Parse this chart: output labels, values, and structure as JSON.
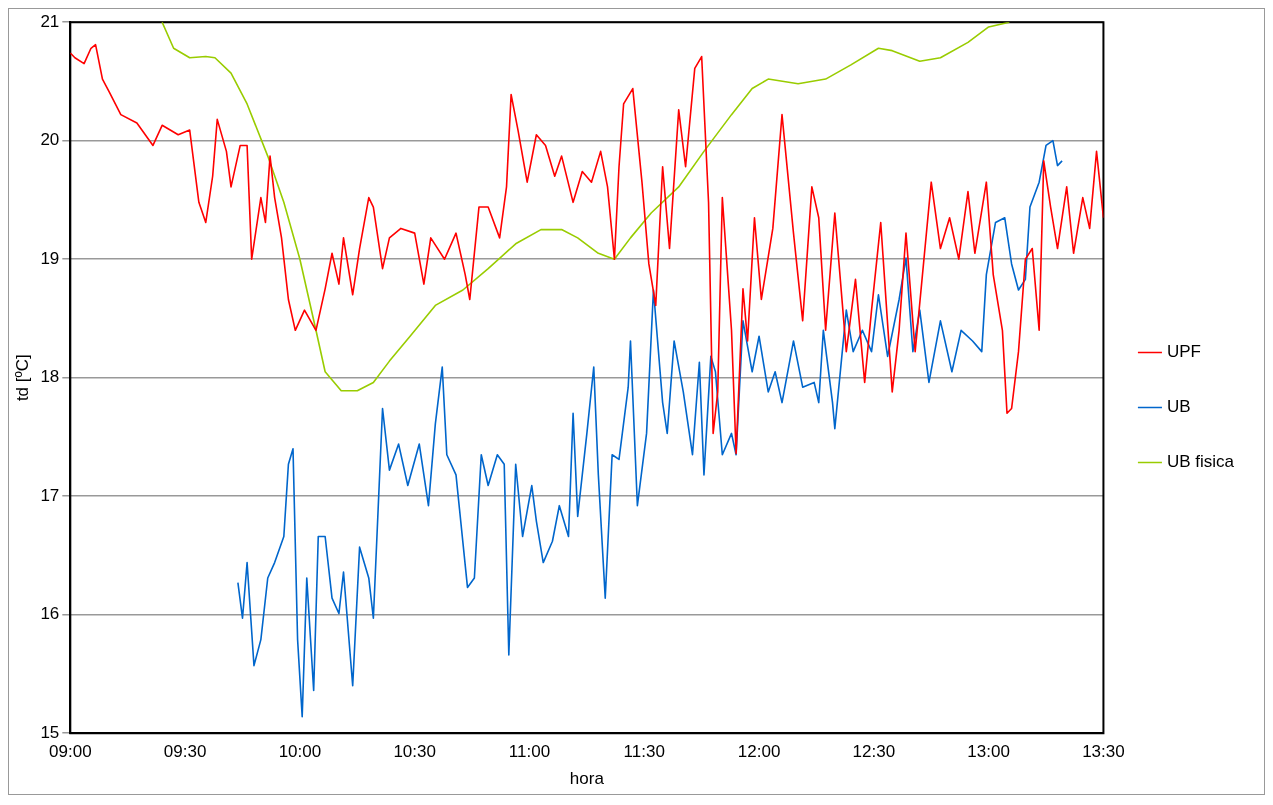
{
  "chart_data": {
    "type": "line",
    "xlabel": "hora",
    "ylabel": "td [ºC]",
    "xlim": [
      9,
      13.5
    ],
    "ylim": [
      15,
      21
    ],
    "xticks": [
      {
        "value": 9,
        "label": "09:00"
      },
      {
        "value": 9.5,
        "label": "09:30"
      },
      {
        "value": 10,
        "label": "10:00"
      },
      {
        "value": 10.5,
        "label": "10:30"
      },
      {
        "value": 11,
        "label": "11:00"
      },
      {
        "value": 11.5,
        "label": "11:30"
      },
      {
        "value": 12,
        "label": "12:00"
      },
      {
        "value": 12.5,
        "label": "12:30"
      },
      {
        "value": 13,
        "label": "13:00"
      },
      {
        "value": 13.5,
        "label": "13:30"
      }
    ],
    "yticks": [
      15,
      16,
      17,
      18,
      19,
      20,
      21
    ],
    "grid": "y",
    "legend": "right",
    "marker": "none",
    "line_style": "solid",
    "series": [
      {
        "name": "UPF",
        "color": "#ff0000",
        "x": [
          9.0,
          9.02,
          9.06,
          9.09,
          9.11,
          9.14,
          9.17,
          9.22,
          9.29,
          9.36,
          9.4,
          9.47,
          9.52,
          9.56,
          9.59,
          9.62,
          9.64,
          9.68,
          9.7,
          9.74,
          9.77,
          9.79,
          9.83,
          9.85,
          9.87,
          9.89,
          9.92,
          9.95,
          9.98,
          10.02,
          10.07,
          10.11,
          10.14,
          10.17,
          10.19,
          10.23,
          10.26,
          10.3,
          10.32,
          10.36,
          10.39,
          10.44,
          10.5,
          10.54,
          10.57,
          10.63,
          10.68,
          10.72,
          10.74,
          10.78,
          10.82,
          10.87,
          10.9,
          10.92,
          10.95,
          10.99,
          11.03,
          11.07,
          11.11,
          11.14,
          11.19,
          11.23,
          11.27,
          11.31,
          11.34,
          11.37,
          11.39,
          11.41,
          11.45,
          11.49,
          11.52,
          11.55,
          11.58,
          11.61,
          11.65,
          11.68,
          11.72,
          11.75,
          11.78,
          11.8,
          11.82,
          11.84,
          11.88,
          11.9,
          11.93,
          11.95,
          11.98,
          12.01,
          12.06,
          12.1,
          12.15,
          12.19,
          12.23,
          12.26,
          12.29,
          12.33,
          12.38,
          12.42,
          12.46,
          12.49,
          12.53,
          12.58,
          12.61,
          12.64,
          12.68,
          12.75,
          12.79,
          12.83,
          12.87,
          12.91,
          12.94,
          12.99,
          13.02,
          13.06,
          13.08,
          13.1,
          13.13,
          13.16,
          13.19,
          13.22,
          13.24,
          13.27,
          13.3,
          13.34,
          13.37,
          13.41,
          13.44,
          13.47,
          13.5
        ],
        "values": [
          20.74,
          20.7,
          20.65,
          20.78,
          20.81,
          20.52,
          20.41,
          20.22,
          20.15,
          19.96,
          20.13,
          20.05,
          20.09,
          19.48,
          19.31,
          19.7,
          20.18,
          19.91,
          19.61,
          19.96,
          19.96,
          19.0,
          19.52,
          19.31,
          19.87,
          19.52,
          19.18,
          18.66,
          18.4,
          18.57,
          18.4,
          18.75,
          19.05,
          18.79,
          19.18,
          18.7,
          19.09,
          19.52,
          19.44,
          18.92,
          19.18,
          19.26,
          19.22,
          18.79,
          19.18,
          19.0,
          19.22,
          18.87,
          18.66,
          19.44,
          19.44,
          19.18,
          19.61,
          20.39,
          20.09,
          19.65,
          20.05,
          19.96,
          19.7,
          19.87,
          19.48,
          19.74,
          19.65,
          19.91,
          19.61,
          19.0,
          19.78,
          20.31,
          20.44,
          19.65,
          18.96,
          18.61,
          19.78,
          19.09,
          20.26,
          19.78,
          20.61,
          20.71,
          19.48,
          17.53,
          17.88,
          19.52,
          18.4,
          17.36,
          18.75,
          18.31,
          19.35,
          18.66,
          19.26,
          20.22,
          19.22,
          18.48,
          19.61,
          19.35,
          18.4,
          19.39,
          18.22,
          18.83,
          17.96,
          18.57,
          19.31,
          17.88,
          18.4,
          19.22,
          18.22,
          19.65,
          19.09,
          19.35,
          19.0,
          19.57,
          19.05,
          19.65,
          18.87,
          18.4,
          17.7,
          17.74,
          18.22,
          19.0,
          19.09,
          18.4,
          19.83,
          19.44,
          19.09,
          19.61,
          19.05,
          19.52,
          19.26,
          19.91,
          19.35
        ]
      },
      {
        "name": "UB",
        "color": "#0066cc",
        "x": [
          9.73,
          9.75,
          9.77,
          9.8,
          9.83,
          9.86,
          9.89,
          9.93,
          9.95,
          9.97,
          9.99,
          10.01,
          10.03,
          10.06,
          10.08,
          10.11,
          10.14,
          10.17,
          10.19,
          10.23,
          10.26,
          10.3,
          10.32,
          10.36,
          10.39,
          10.43,
          10.47,
          10.52,
          10.56,
          10.59,
          10.62,
          10.64,
          10.68,
          10.73,
          10.76,
          10.79,
          10.82,
          10.86,
          10.89,
          10.91,
          10.94,
          10.97,
          11.01,
          11.03,
          11.06,
          11.1,
          11.13,
          11.17,
          11.19,
          11.21,
          11.25,
          11.28,
          11.3,
          11.33,
          11.36,
          11.39,
          11.43,
          11.44,
          11.47,
          11.51,
          11.54,
          11.58,
          11.6,
          11.63,
          11.67,
          11.71,
          11.74,
          11.76,
          11.79,
          11.81,
          11.84,
          11.88,
          11.9,
          11.93,
          11.97,
          12.0,
          12.04,
          12.07,
          12.1,
          12.15,
          12.19,
          12.24,
          12.26,
          12.28,
          12.32,
          12.33,
          12.38,
          12.41,
          12.45,
          12.49,
          12.52,
          12.56,
          12.61,
          12.64,
          12.67,
          12.7,
          12.74,
          12.79,
          12.84,
          12.88,
          12.93,
          12.97,
          12.99,
          13.03,
          13.07,
          13.1,
          13.13,
          13.16,
          13.18,
          13.22,
          13.25,
          13.28,
          13.3,
          13.32
        ],
        "values": [
          16.27,
          15.97,
          16.44,
          15.57,
          15.79,
          16.31,
          16.44,
          16.66,
          17.27,
          17.4,
          15.79,
          15.14,
          16.31,
          15.36,
          16.66,
          16.66,
          16.14,
          16.01,
          16.36,
          15.4,
          16.57,
          16.31,
          15.97,
          17.74,
          17.22,
          17.44,
          17.09,
          17.44,
          16.92,
          17.61,
          18.09,
          17.35,
          17.18,
          16.23,
          16.31,
          17.35,
          17.09,
          17.35,
          17.27,
          15.66,
          17.27,
          16.66,
          17.09,
          16.79,
          16.44,
          16.62,
          16.92,
          16.66,
          17.7,
          16.83,
          17.53,
          18.09,
          17.18,
          16.14,
          17.35,
          17.31,
          17.92,
          18.31,
          16.92,
          17.53,
          18.74,
          17.79,
          17.53,
          18.31,
          17.88,
          17.35,
          18.13,
          17.18,
          18.18,
          18.05,
          17.35,
          17.53,
          17.35,
          18.48,
          18.05,
          18.35,
          17.88,
          18.05,
          17.79,
          18.31,
          17.92,
          17.96,
          17.79,
          18.4,
          17.79,
          17.57,
          18.57,
          18.22,
          18.4,
          18.22,
          18.7,
          18.18,
          18.66,
          19.01,
          18.22,
          18.57,
          17.96,
          18.48,
          18.05,
          18.4,
          18.31,
          18.22,
          18.87,
          19.31,
          19.35,
          18.96,
          18.74,
          18.83,
          19.44,
          19.65,
          19.96,
          20.0,
          19.79,
          19.83
        ]
      },
      {
        "name": "UB fisica",
        "color": "#99cc00",
        "x": [
          9.4,
          9.45,
          9.52,
          9.59,
          9.63,
          9.7,
          9.77,
          9.86,
          9.93,
          10.0,
          10.07,
          10.11,
          10.18,
          10.25,
          10.32,
          10.39,
          10.48,
          10.59,
          10.71,
          10.82,
          10.94,
          11.05,
          11.14,
          11.21,
          11.3,
          11.37,
          11.44,
          11.53,
          11.65,
          11.76,
          11.88,
          11.97,
          12.04,
          12.17,
          12.29,
          12.4,
          12.52,
          12.58,
          12.7,
          12.79,
          12.91,
          13.0,
          13.09
        ],
        "values": [
          21.0,
          20.78,
          20.7,
          20.71,
          20.7,
          20.57,
          20.31,
          19.87,
          19.48,
          19.0,
          18.4,
          18.05,
          17.89,
          17.89,
          17.96,
          18.14,
          18.35,
          18.61,
          18.74,
          18.92,
          19.13,
          19.25,
          19.25,
          19.18,
          19.05,
          19.0,
          19.18,
          19.39,
          19.61,
          19.91,
          20.22,
          20.44,
          20.52,
          20.48,
          20.52,
          20.64,
          20.78,
          20.76,
          20.67,
          20.7,
          20.83,
          20.96,
          21.0
        ]
      }
    ]
  }
}
